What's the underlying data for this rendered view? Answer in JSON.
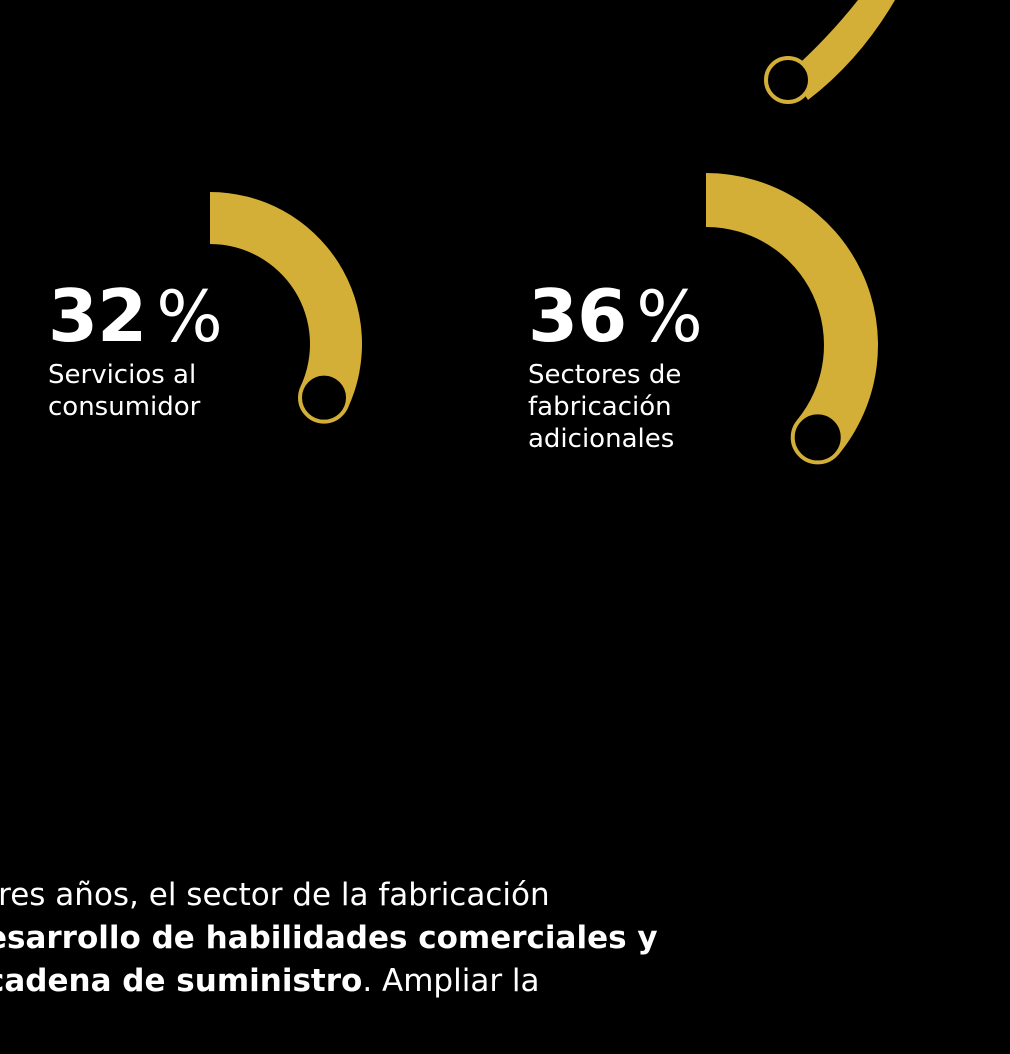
{
  "chart_data": {
    "type": "donut",
    "accent_color": "#D4AF37",
    "background_color": "#000000",
    "items": [
      {
        "value": 32,
        "percent_label": "32",
        "symbol": "%",
        "label_lines": [
          "Servicios al",
          "consumidor"
        ]
      },
      {
        "value": 36,
        "percent_label": "36",
        "symbol": "%",
        "label_lines": [
          "Sectores de",
          "fabricación",
          "adicionales"
        ]
      }
    ]
  },
  "paragraph": {
    "line1_plain": "tres años, el sector de la fabricación",
    "line2_bold": "esarrollo de habilidades comerciales y",
    "line3_bold": " cadena de suministro",
    "line3_plain": ". Ampliar la"
  }
}
